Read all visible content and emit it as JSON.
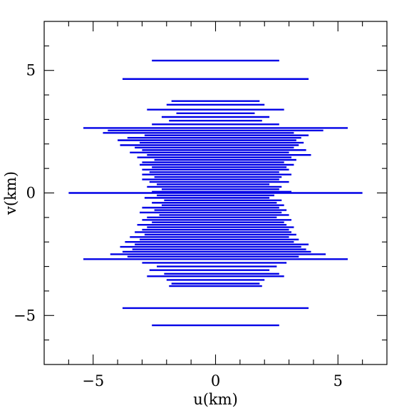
{
  "chart_data": {
    "type": "scatter",
    "title": "",
    "xlabel": "u(km)",
    "ylabel": "v(km)",
    "xlim": [
      -7,
      7
    ],
    "ylim": [
      -7,
      7
    ],
    "xticks": [
      -5,
      0,
      5
    ],
    "yticks": [
      -5,
      0,
      5
    ],
    "xtick_labels": [
      "−5",
      "0",
      "5"
    ],
    "ytick_labels": [
      "−5",
      "0",
      "5"
    ],
    "minor_tick_step": 1,
    "grid": false,
    "legend": "none",
    "mark": "horizontal uv-track segments",
    "series": [
      {
        "color": "#0000e6",
        "segments": [
          {
            "v": 5.4,
            "u": [
              -2.6,
              2.6
            ]
          },
          {
            "v": 4.65,
            "u": [
              -3.8,
              3.8
            ]
          },
          {
            "v": 3.75,
            "u": [
              -1.8,
              1.8
            ]
          },
          {
            "v": 3.6,
            "u": [
              -2.0,
              2.0
            ]
          },
          {
            "v": 3.4,
            "u": [
              -2.8,
              2.8
            ]
          },
          {
            "v": 3.25,
            "u": [
              -1.6,
              1.6
            ]
          },
          {
            "v": 3.1,
            "u": [
              -2.2,
              2.2
            ]
          },
          {
            "v": 2.95,
            "u": [
              -1.9,
              1.9
            ]
          },
          {
            "v": 2.8,
            "u": [
              -2.6,
              2.6
            ]
          },
          {
            "v": 2.65,
            "u": [
              -5.4,
              5.4
            ]
          },
          {
            "v": 2.55,
            "u": [
              -4.4,
              4.4
            ]
          },
          {
            "v": 2.45,
            "u": [
              -4.6,
              3.2
            ]
          },
          {
            "v": 2.35,
            "u": [
              -2.9,
              3.8
            ]
          },
          {
            "v": 2.25,
            "u": [
              -3.6,
              3.5
            ]
          },
          {
            "v": 2.15,
            "u": [
              -4.0,
              3.3
            ]
          },
          {
            "v": 2.05,
            "u": [
              -3.1,
              3.6
            ]
          },
          {
            "v": 1.95,
            "u": [
              -3.9,
              3.4
            ]
          },
          {
            "v": 1.85,
            "u": [
              -3.3,
              3.2
            ]
          },
          {
            "v": 1.75,
            "u": [
              -3.0,
              3.7
            ]
          },
          {
            "v": 1.65,
            "u": [
              -3.5,
              3.0
            ]
          },
          {
            "v": 1.55,
            "u": [
              -2.8,
              3.9
            ]
          },
          {
            "v": 1.45,
            "u": [
              -3.2,
              3.1
            ]
          },
          {
            "v": 1.35,
            "u": [
              -2.5,
              3.3
            ]
          },
          {
            "v": 1.25,
            "u": [
              -3.0,
              2.8
            ]
          },
          {
            "v": 1.15,
            "u": [
              -3.1,
              3.2
            ]
          },
          {
            "v": 1.05,
            "u": [
              -2.6,
              2.9
            ]
          },
          {
            "v": 0.95,
            "u": [
              -3.0,
              3.0
            ]
          },
          {
            "v": 0.85,
            "u": [
              -2.7,
              2.6
            ]
          },
          {
            "v": 0.75,
            "u": [
              -3.0,
              3.1
            ]
          },
          {
            "v": 0.65,
            "u": [
              -2.5,
              2.7
            ]
          },
          {
            "v": 0.55,
            "u": [
              -3.0,
              2.6
            ]
          },
          {
            "v": 0.45,
            "u": [
              -2.7,
              3.0
            ]
          },
          {
            "v": 0.35,
            "u": [
              -2.4,
              2.2
            ]
          },
          {
            "v": 0.25,
            "u": [
              -2.8,
              2.7
            ]
          },
          {
            "v": 0.15,
            "u": [
              -2.2,
              2.6
            ]
          },
          {
            "v": 0.05,
            "u": [
              -2.6,
              3.1
            ]
          },
          {
            "v": 0.0,
            "u": [
              -6.0,
              6.0
            ]
          },
          {
            "v": -0.1,
            "u": [
              -2.4,
              2.4
            ]
          },
          {
            "v": -0.2,
            "u": [
              -2.9,
              2.2
            ]
          },
          {
            "v": -0.3,
            "u": [
              -2.1,
              2.7
            ]
          },
          {
            "v": -0.4,
            "u": [
              -2.6,
              2.5
            ]
          },
          {
            "v": -0.5,
            "u": [
              -2.2,
              2.8
            ]
          },
          {
            "v": -0.6,
            "u": [
              -3.0,
              2.6
            ]
          },
          {
            "v": -0.7,
            "u": [
              -2.5,
              2.9
            ]
          },
          {
            "v": -0.8,
            "u": [
              -3.1,
              2.7
            ]
          },
          {
            "v": -0.9,
            "u": [
              -2.3,
              3.0
            ]
          },
          {
            "v": -1.0,
            "u": [
              -2.8,
              2.5
            ]
          },
          {
            "v": -1.1,
            "u": [
              -3.0,
              3.1
            ]
          },
          {
            "v": -1.2,
            "u": [
              -2.6,
              2.8
            ]
          },
          {
            "v": -1.3,
            "u": [
              -3.2,
              2.9
            ]
          },
          {
            "v": -1.4,
            "u": [
              -2.8,
              3.2
            ]
          },
          {
            "v": -1.5,
            "u": [
              -3.0,
              3.0
            ]
          },
          {
            "v": -1.6,
            "u": [
              -3.3,
              3.1
            ]
          },
          {
            "v": -1.7,
            "u": [
              -2.9,
              3.3
            ]
          },
          {
            "v": -1.8,
            "u": [
              -3.5,
              3.0
            ]
          },
          {
            "v": -1.9,
            "u": [
              -3.1,
              3.4
            ]
          },
          {
            "v": -2.0,
            "u": [
              -3.7,
              3.2
            ]
          },
          {
            "v": -2.1,
            "u": [
              -3.3,
              3.8
            ]
          },
          {
            "v": -2.2,
            "u": [
              -3.9,
              3.5
            ]
          },
          {
            "v": -2.3,
            "u": [
              -3.4,
              3.7
            ]
          },
          {
            "v": -2.4,
            "u": [
              -3.8,
              3.9
            ]
          },
          {
            "v": -2.5,
            "u": [
              -4.3,
              4.5
            ]
          },
          {
            "v": -2.6,
            "u": [
              -3.6,
              3.4
            ]
          },
          {
            "v": -2.7,
            "u": [
              -5.4,
              5.4
            ]
          },
          {
            "v": -2.85,
            "u": [
              -3.0,
              2.9
            ]
          },
          {
            "v": -3.0,
            "u": [
              -2.4,
              2.5
            ]
          },
          {
            "v": -3.15,
            "u": [
              -2.7,
              2.2
            ]
          },
          {
            "v": -3.3,
            "u": [
              -2.1,
              2.6
            ]
          },
          {
            "v": -3.4,
            "u": [
              -2.8,
              2.8
            ]
          },
          {
            "v": -3.55,
            "u": [
              -2.0,
              2.0
            ]
          },
          {
            "v": -3.7,
            "u": [
              -1.8,
              1.8
            ]
          },
          {
            "v": -3.8,
            "u": [
              -1.9,
              1.9
            ]
          },
          {
            "v": -4.7,
            "u": [
              -3.8,
              3.8
            ]
          },
          {
            "v": -5.4,
            "u": [
              -2.6,
              2.6
            ]
          }
        ]
      }
    ]
  }
}
